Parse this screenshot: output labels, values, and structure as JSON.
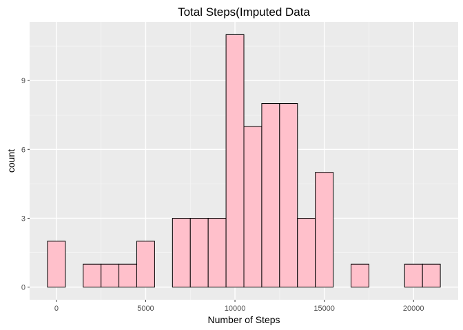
{
  "chart_data": {
    "type": "bar",
    "title": "Total Steps(Imputed Data",
    "xlabel": "Number of Steps",
    "ylabel": "count",
    "bin_width": 1000,
    "bins": [
      {
        "x": 0,
        "count": 2
      },
      {
        "x": 1000,
        "count": 0
      },
      {
        "x": 2000,
        "count": 1
      },
      {
        "x": 3000,
        "count": 1
      },
      {
        "x": 4000,
        "count": 1
      },
      {
        "x": 5000,
        "count": 2
      },
      {
        "x": 6000,
        "count": 0
      },
      {
        "x": 7000,
        "count": 3
      },
      {
        "x": 8000,
        "count": 3
      },
      {
        "x": 9000,
        "count": 3
      },
      {
        "x": 10000,
        "count": 11
      },
      {
        "x": 11000,
        "count": 7
      },
      {
        "x": 12000,
        "count": 8
      },
      {
        "x": 13000,
        "count": 8
      },
      {
        "x": 14000,
        "count": 3
      },
      {
        "x": 15000,
        "count": 5
      },
      {
        "x": 16000,
        "count": 0
      },
      {
        "x": 17000,
        "count": 1
      },
      {
        "x": 18000,
        "count": 0
      },
      {
        "x": 19000,
        "count": 0
      },
      {
        "x": 20000,
        "count": 1
      },
      {
        "x": 21000,
        "count": 1
      }
    ],
    "xticks": [
      0,
      5000,
      10000,
      15000,
      20000
    ],
    "yticks": [
      0,
      3,
      6,
      9
    ],
    "xlim": [
      -1500,
      22500
    ],
    "ylim": [
      -0.55,
      11.55
    ],
    "colors": {
      "bar_fill": "#ffc0cb",
      "bar_stroke": "#000000",
      "panel_background": "#ebebeb",
      "grid_major": "#ffffff",
      "grid_minor": "#f5f5f5"
    },
    "grid": true,
    "legend": "none"
  }
}
